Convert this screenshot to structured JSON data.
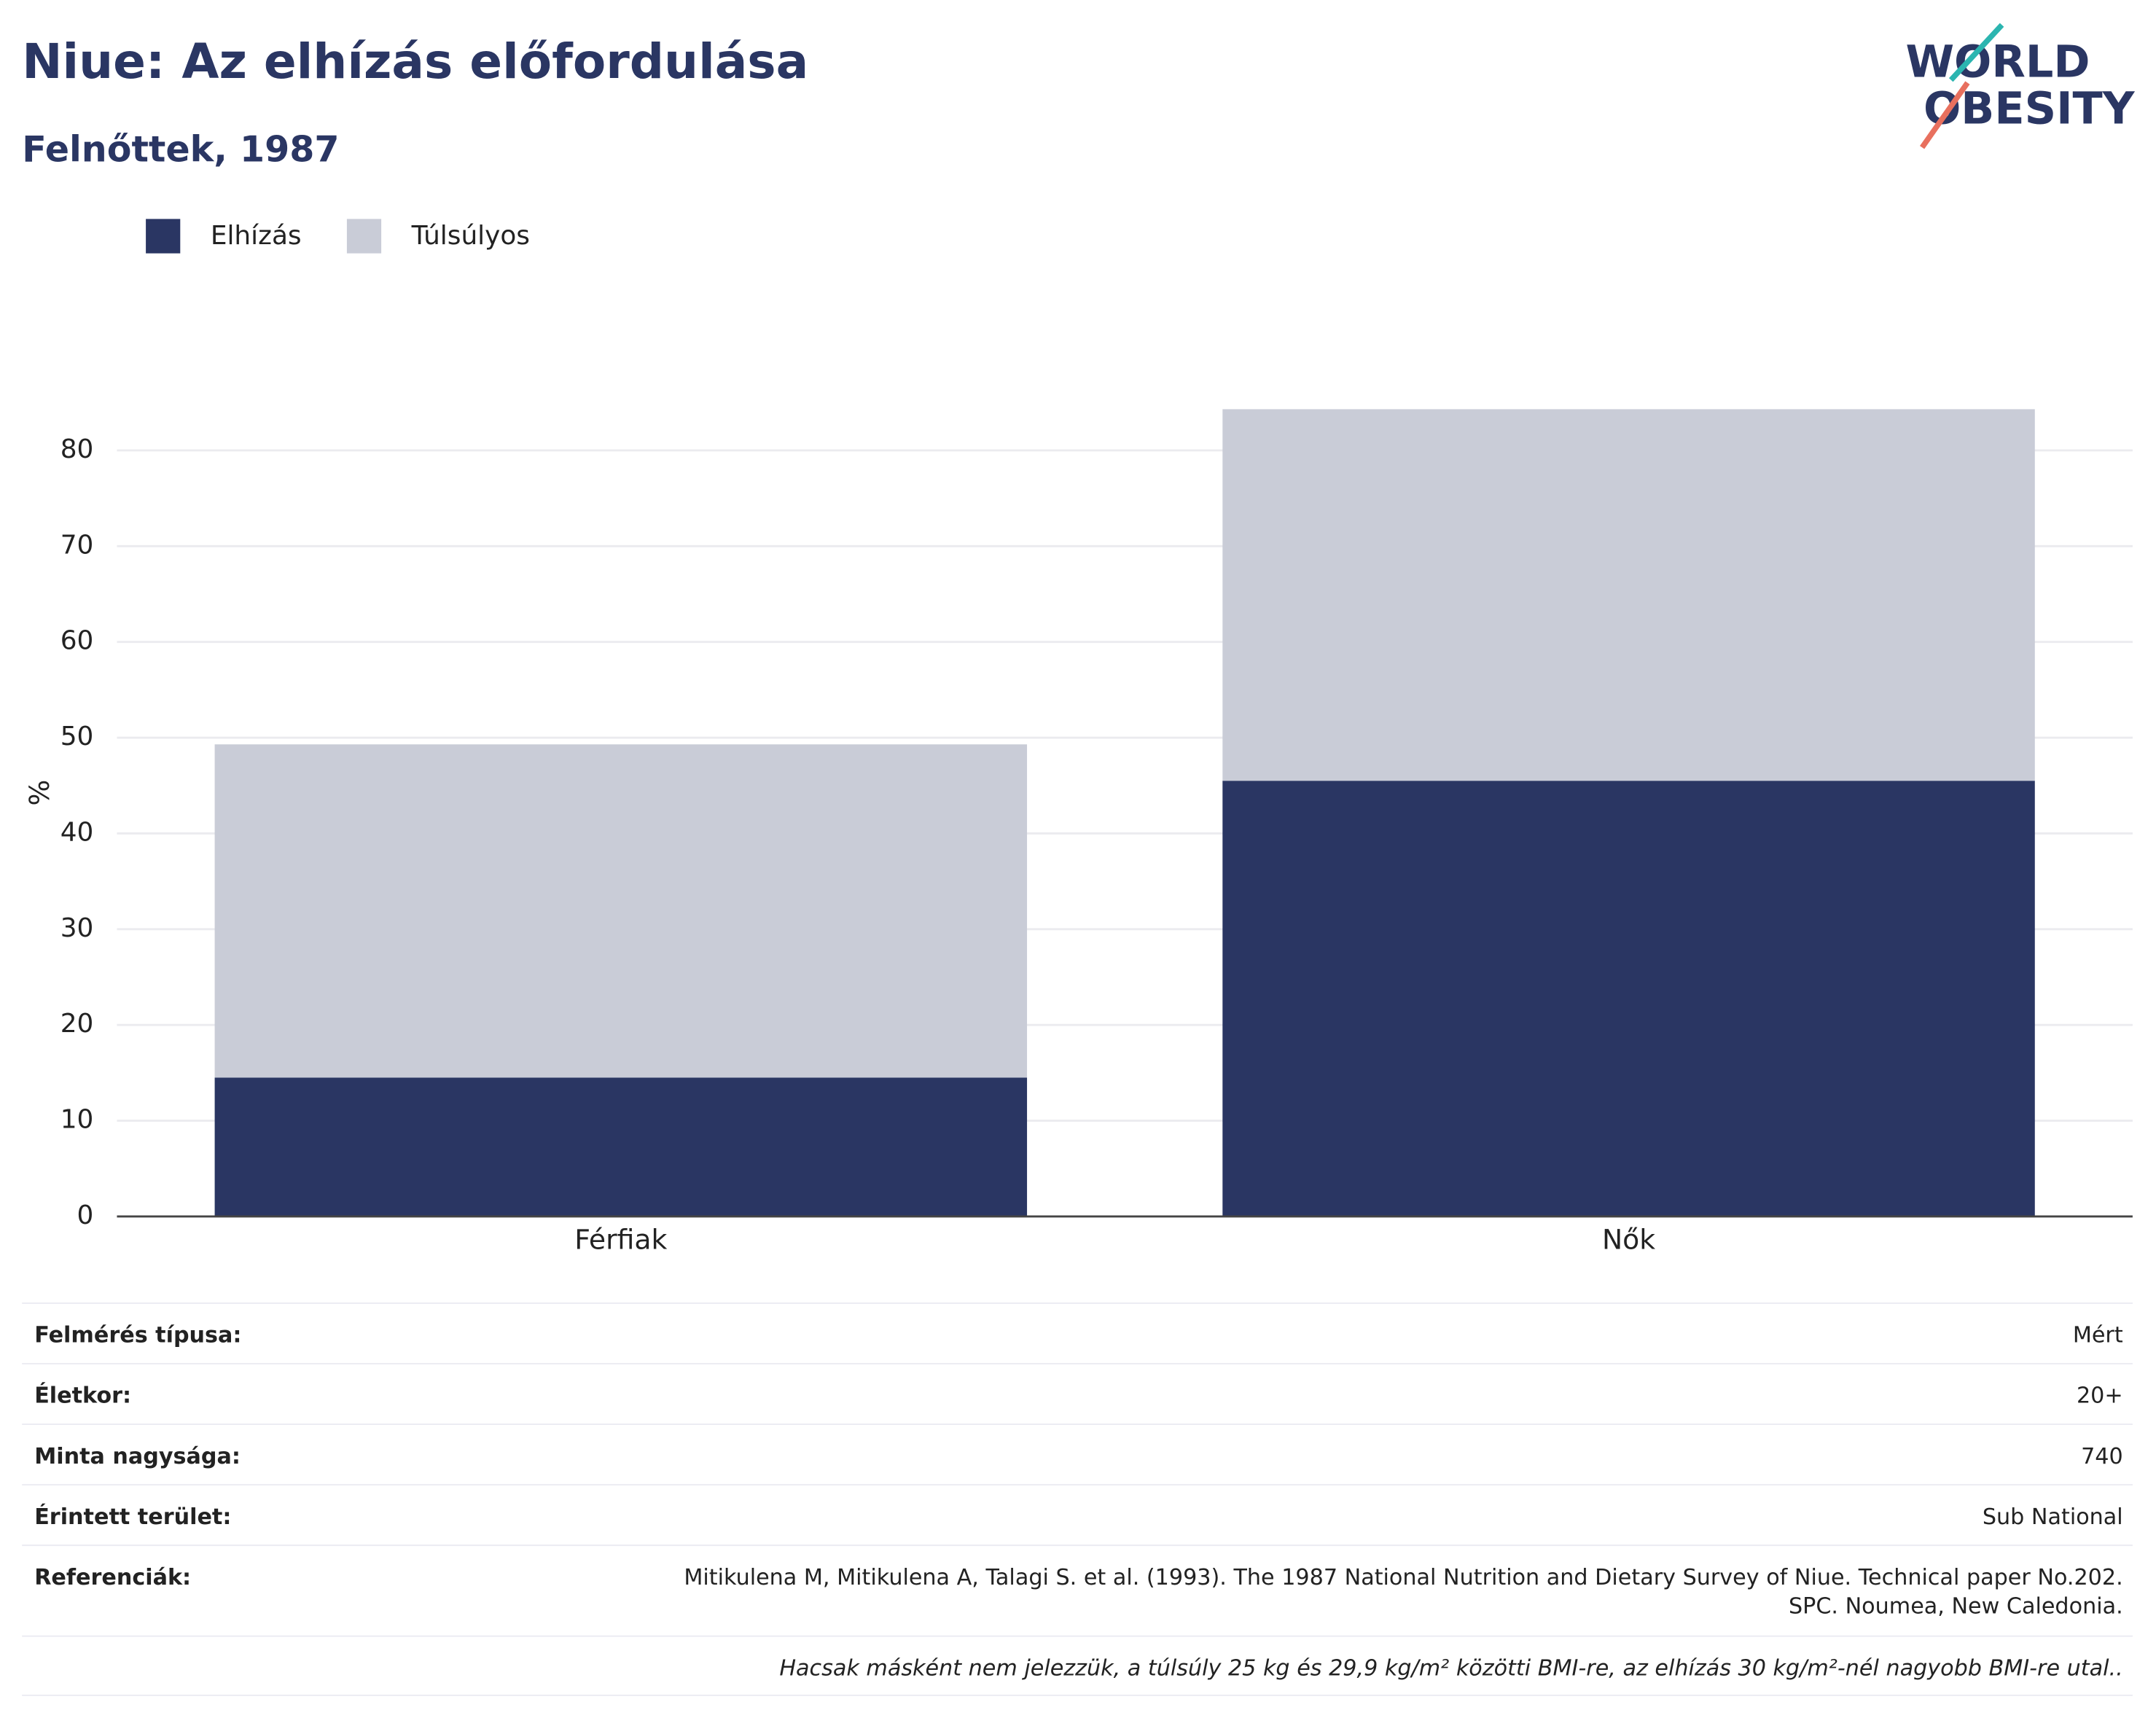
{
  "chart_data": {
    "type": "stacked_bar",
    "title": "Niue: Az elhízás előfordulása",
    "subtitle": "Felnőttek, 1987",
    "y_label": "%",
    "categories": [
      "Férfiak",
      "Nők"
    ],
    "series": [
      {
        "name": "Elhízás",
        "color": "#2a3663",
        "values": [
          14.5,
          45.5
        ]
      },
      {
        "name": "Túlsúlyos",
        "color": "#c9ccd7",
        "values": [
          34.8,
          38.8
        ]
      }
    ],
    "ylim": [
      0,
      85
    ],
    "yticks": [
      0,
      10,
      20,
      30,
      40,
      50,
      60,
      70,
      80
    ],
    "grid": true
  },
  "logo": [
    "WORLD",
    "OBESITY"
  ],
  "info": {
    "rows": [
      {
        "label": "Felmérés típusa:",
        "value": [
          "Mért"
        ]
      },
      {
        "label": "Életkor:",
        "value": [
          "20+"
        ]
      },
      {
        "label": "Minta nagysága:",
        "value": [
          "740"
        ]
      },
      {
        "label": "Érintett terület:",
        "value": [
          "Sub National"
        ]
      },
      {
        "label": "Referenciák:",
        "value": [
          "Mitikulena M, Mitikulena A, Talagi S. et al. (1993). The 1987 National Nutrition and Dietary Survey of Niue. Technical paper No.202.",
          "SPC. Noumea, New Caledonia."
        ]
      }
    ],
    "note": "Hacsak másként nem jelezzük, a túlsúly 25 kg és 29,9 kg/m² közötti BMI-re, az elhízás 30 kg/m²-nél nagyobb BMI-re utal.."
  }
}
